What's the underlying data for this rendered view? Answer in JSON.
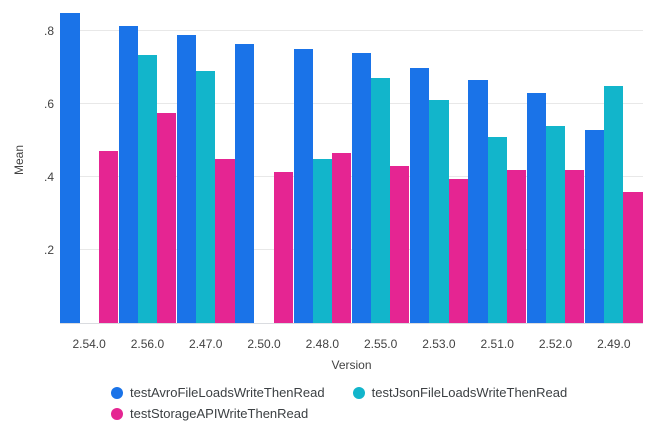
{
  "chart_data": {
    "type": "bar",
    "title": "",
    "xlabel": "Version",
    "ylabel": "Mean",
    "categories": [
      "2.54.0",
      "2.56.0",
      "2.47.0",
      "2.50.0",
      "2.48.0",
      "2.55.0",
      "2.53.0",
      "2.51.0",
      "2.52.0",
      "2.49.0"
    ],
    "series": [
      {
        "name": "testAvroFileLoadsWriteThenRead",
        "color": "#1a73e8",
        "values": [
          0.85,
          0.815,
          0.79,
          0.765,
          0.75,
          0.74,
          0.7,
          0.665,
          0.63,
          0.53
        ]
      },
      {
        "name": "testJsonFileLoadsWriteThenRead",
        "color": "#12b5cb",
        "values": [
          null,
          0.735,
          0.69,
          null,
          0.45,
          0.67,
          0.61,
          0.51,
          0.54,
          0.65
        ]
      },
      {
        "name": "testStorageAPIWriteThenRead",
        "color": "#e52592",
        "values": [
          0.47,
          0.575,
          0.45,
          0.415,
          0.465,
          0.43,
          0.395,
          0.42,
          0.42,
          0.36
        ]
      }
    ],
    "y_ticks": [
      ".2",
      ".4",
      ".6",
      ".8"
    ],
    "y_tick_values": [
      0.2,
      0.4,
      0.6,
      0.8
    ],
    "ylim": [
      0,
      0.885
    ],
    "grid": true,
    "legend_position": "bottom",
    "background_color": "#ffffff",
    "axis_text_color": "#424242",
    "legend_text_color": "#3c4043"
  }
}
